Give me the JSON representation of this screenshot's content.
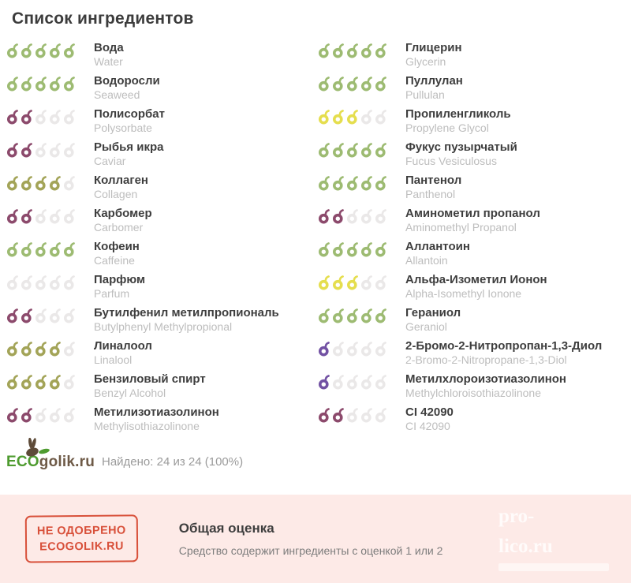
{
  "title": "Список ингредиентов",
  "colors": {
    "rating5": "#9dbb72",
    "rating4": "#a3a458",
    "rating3": "#e5de4e",
    "rating2": "#8c4a6c",
    "rating1": "#7251a3",
    "empty": "#eae8e8",
    "accent_red": "#d8503a",
    "panel_bg": "#fdeae7",
    "logo_green": "#4e9b2f",
    "logo_brown": "#6e5a47"
  },
  "ingredients": {
    "left": [
      {
        "name": "Вода",
        "latin": "Water",
        "rating": 5
      },
      {
        "name": "Водоросли",
        "latin": "Seaweed",
        "rating": 5
      },
      {
        "name": "Полисорбат",
        "latin": "Polysorbate",
        "rating": 2
      },
      {
        "name": "Рыбья икра",
        "latin": "Caviar",
        "rating": 2
      },
      {
        "name": "Коллаген",
        "latin": "Collagen",
        "rating": 4
      },
      {
        "name": "Карбомер",
        "latin": "Carbomer",
        "rating": 2
      },
      {
        "name": "Кофеин",
        "latin": "Caffeine",
        "rating": 5
      },
      {
        "name": "Парфюм",
        "latin": "Parfum",
        "rating": 0
      },
      {
        "name": "Бутилфенил метилпропиональ",
        "latin": "Butylphenyl Methylpropional",
        "rating": 2
      },
      {
        "name": "Линалоол",
        "latin": "Linalool",
        "rating": 4
      },
      {
        "name": "Бензиловый спирт",
        "latin": "Benzyl Alcohol",
        "rating": 4
      },
      {
        "name": "Метилизотиазолинон",
        "latin": "Methylisothiazolinone",
        "rating": 2
      }
    ],
    "right": [
      {
        "name": "Глицерин",
        "latin": "Glycerin",
        "rating": 5
      },
      {
        "name": "Пуллулан",
        "latin": "Pullulan",
        "rating": 5
      },
      {
        "name": "Пропиленгликоль",
        "latin": "Propylene Glycol",
        "rating": 3
      },
      {
        "name": "Фукус пузырчатый",
        "latin": "Fucus Vesiculosus",
        "rating": 5
      },
      {
        "name": "Пантенол",
        "latin": "Panthenol",
        "rating": 5
      },
      {
        "name": "Аминометил пропанол",
        "latin": "Aminomethyl Propanol",
        "rating": 2
      },
      {
        "name": "Аллантоин",
        "latin": "Allantoin",
        "rating": 5
      },
      {
        "name": "Альфа-Изометил Ионон",
        "latin": "Alpha-Isomethyl Ionone",
        "rating": 3
      },
      {
        "name": "Гераниол",
        "latin": "Geraniol",
        "rating": 5
      },
      {
        "name": "2-Бромо-2-Нитропропан-1,3-Диол",
        "latin": "2-Bromo-2-Nitropropane-1,3-Diol",
        "rating": 1
      },
      {
        "name": "Метилхлороизотиазолинон",
        "latin": "Methylchloroisothiazolinone",
        "rating": 1
      },
      {
        "name": "CI 42090",
        "latin": "CI 42090",
        "rating": 2
      }
    ]
  },
  "footer": {
    "logo_eco": "ECO",
    "logo_rest": "golik.ru",
    "found_text": "Найдено: 24 из 24 (100%)"
  },
  "verdict": {
    "stamp_line1": "НЕ ОДОБРЕНО",
    "stamp_line2": "ECOGOLIK.RU",
    "title": "Общая оценка",
    "description": "Средство содержит ингредиенты с оценкой 1 или 2"
  },
  "watermark": {
    "line1": "pro-",
    "line2": "lico.ru"
  }
}
